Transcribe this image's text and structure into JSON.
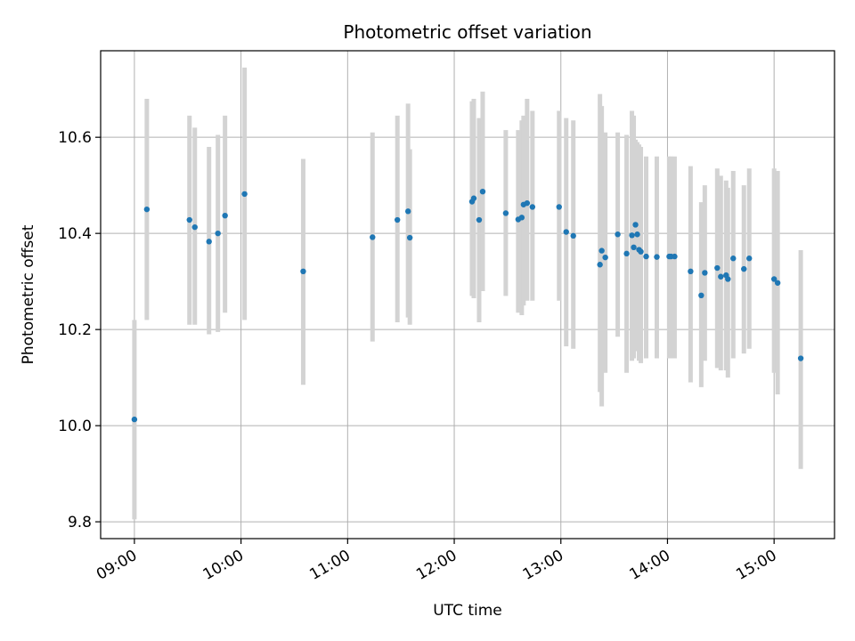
{
  "chart_data": {
    "type": "scatter",
    "title": "Photometric offset variation",
    "xlabel": "UTC time",
    "ylabel": "Photometric offset",
    "x_ticks": [
      "09:00",
      "10:00",
      "11:00",
      "12:00",
      "13:00",
      "14:00",
      "15:00"
    ],
    "y_ticks": [
      "9.8",
      "10.0",
      "10.2",
      "10.4",
      "10.6"
    ],
    "xlim": [
      "08:41",
      "15:34"
    ],
    "ylim": [
      9.765,
      10.78
    ],
    "grid": true,
    "colors": {
      "point": "#1f77b4",
      "errorbar": "#d3d3d3",
      "grid": "#b0b0b0"
    },
    "series": [
      {
        "x": [
          "09:00",
          "09:07",
          "09:31",
          "09:34",
          "09:42",
          "09:47",
          "09:51",
          "10:02",
          "10:35",
          "11:14",
          "11:28",
          "11:34",
          "11:35",
          "12:10",
          "12:11",
          "12:14",
          "12:16",
          "12:29",
          "12:36",
          "12:38",
          "12:39",
          "12:41",
          "12:44",
          "12:59",
          "13:03",
          "13:07",
          "13:22",
          "13:23",
          "13:25",
          "13:32",
          "13:37",
          "13:40",
          "13:41",
          "13:42",
          "13:43",
          "13:44",
          "13:45",
          "13:48",
          "13:54",
          "14:01",
          "14:02",
          "14:04",
          "14:13",
          "14:19",
          "14:21",
          "14:28",
          "14:30",
          "14:33",
          "14:34",
          "14:37",
          "14:43",
          "14:46",
          "15:00",
          "15:02",
          "15:15"
        ],
        "y": [
          10.013,
          10.45,
          10.428,
          10.413,
          10.383,
          10.4,
          10.437,
          10.482,
          10.321,
          10.392,
          10.428,
          10.446,
          10.391,
          10.466,
          10.473,
          10.428,
          10.487,
          10.442,
          10.429,
          10.433,
          10.46,
          10.463,
          10.455,
          10.455,
          10.403,
          10.395,
          10.335,
          10.364,
          10.35,
          10.398,
          10.358,
          10.396,
          10.371,
          10.418,
          10.398,
          10.366,
          10.362,
          10.352,
          10.351,
          10.352,
          10.352,
          10.352,
          10.321,
          10.271,
          10.318,
          10.328,
          10.31,
          10.313,
          10.305,
          10.348,
          10.326,
          10.348,
          10.305,
          10.297,
          10.14
        ],
        "yerr_low": [
          9.805,
          10.22,
          10.21,
          10.21,
          10.19,
          10.195,
          10.235,
          10.22,
          10.085,
          10.175,
          10.215,
          10.225,
          10.21,
          10.27,
          10.265,
          10.215,
          10.28,
          10.27,
          10.235,
          10.23,
          10.25,
          10.26,
          10.26,
          10.26,
          10.165,
          10.16,
          10.07,
          10.04,
          10.11,
          10.185,
          10.11,
          10.135,
          10.14,
          10.155,
          10.165,
          10.135,
          10.13,
          10.14,
          10.14,
          10.14,
          10.14,
          10.14,
          10.09,
          10.08,
          10.135,
          10.12,
          10.115,
          10.115,
          10.1,
          10.14,
          10.15,
          10.16,
          10.11,
          10.065,
          9.91
        ],
        "yerr_high": [
          10.22,
          10.68,
          10.645,
          10.62,
          10.58,
          10.605,
          10.645,
          10.745,
          10.555,
          10.61,
          10.645,
          10.67,
          10.575,
          10.675,
          10.68,
          10.64,
          10.695,
          10.615,
          10.615,
          10.635,
          10.645,
          10.68,
          10.655,
          10.655,
          10.64,
          10.635,
          10.69,
          10.665,
          10.61,
          10.61,
          10.605,
          10.655,
          10.645,
          10.595,
          10.59,
          10.585,
          10.58,
          10.56,
          10.56,
          10.56,
          10.56,
          10.56,
          10.54,
          10.465,
          10.5,
          10.535,
          10.52,
          10.51,
          10.495,
          10.53,
          10.5,
          10.535,
          10.535,
          10.53,
          10.365
        ]
      }
    ]
  }
}
